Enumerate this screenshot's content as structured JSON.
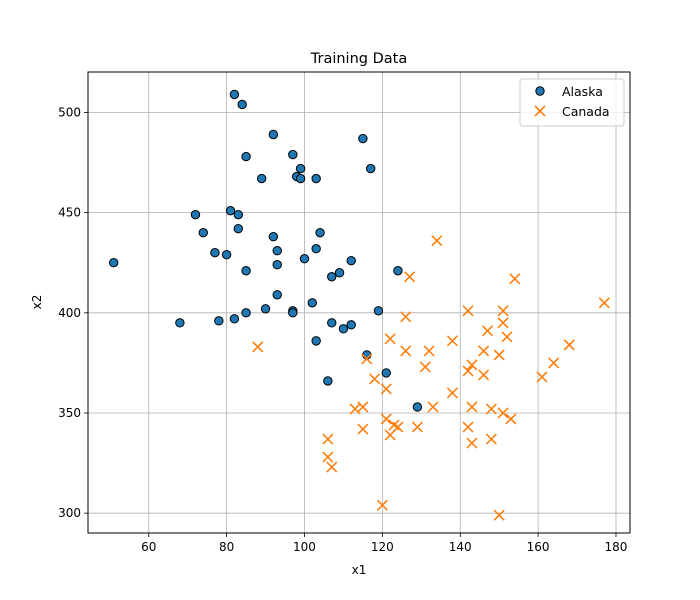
{
  "chart_data": {
    "type": "scatter",
    "title": "Training Data",
    "xlabel": "x1",
    "ylabel": "x2",
    "xlim": [
      44.4,
      183.6
    ],
    "ylim": [
      290.1,
      520.2
    ],
    "xticks": [
      60,
      80,
      100,
      120,
      140,
      160,
      180
    ],
    "yticks": [
      300,
      350,
      400,
      450,
      500
    ],
    "grid": true,
    "legend_position": "top-right",
    "colors": {
      "Alaska": "#1f77b4",
      "Canada": "#ff7f0e",
      "edge": "#000000",
      "grid": "#b0b0b0"
    },
    "series": [
      {
        "name": "Alaska",
        "marker": "circle",
        "points": [
          [
            82,
            509
          ],
          [
            84,
            504
          ],
          [
            92,
            489
          ],
          [
            115,
            487
          ],
          [
            85,
            478
          ],
          [
            97,
            479
          ],
          [
            99,
            472
          ],
          [
            117,
            472
          ],
          [
            89,
            467
          ],
          [
            98,
            468
          ],
          [
            99,
            467
          ],
          [
            103,
            467
          ],
          [
            72,
            449
          ],
          [
            81,
            451
          ],
          [
            83,
            449
          ],
          [
            74,
            440
          ],
          [
            83,
            442
          ],
          [
            92,
            438
          ],
          [
            104,
            440
          ],
          [
            77,
            430
          ],
          [
            80,
            429
          ],
          [
            93,
            431
          ],
          [
            103,
            432
          ],
          [
            100,
            427
          ],
          [
            112,
            426
          ],
          [
            93,
            424
          ],
          [
            85,
            421
          ],
          [
            107,
            418
          ],
          [
            109,
            420
          ],
          [
            124,
            421
          ],
          [
            51,
            425
          ],
          [
            93,
            409
          ],
          [
            102,
            405
          ],
          [
            90,
            402
          ],
          [
            97,
            401
          ],
          [
            97,
            400
          ],
          [
            85,
            400
          ],
          [
            119,
            401
          ],
          [
            68,
            395
          ],
          [
            78,
            396
          ],
          [
            82,
            397
          ],
          [
            107,
            395
          ],
          [
            110,
            392
          ],
          [
            112,
            394
          ],
          [
            103,
            386
          ],
          [
            116,
            379
          ],
          [
            121,
            370
          ],
          [
            106,
            366
          ],
          [
            129,
            353
          ]
        ]
      },
      {
        "name": "Canada",
        "marker": "x",
        "points": [
          [
            134,
            436
          ],
          [
            127,
            418
          ],
          [
            154,
            417
          ],
          [
            177,
            405
          ],
          [
            142,
            401
          ],
          [
            151,
            401
          ],
          [
            126,
            398
          ],
          [
            151,
            395
          ],
          [
            147,
            391
          ],
          [
            122,
            387
          ],
          [
            152,
            388
          ],
          [
            88,
            383
          ],
          [
            138,
            386
          ],
          [
            126,
            381
          ],
          [
            132,
            381
          ],
          [
            146,
            381
          ],
          [
            150,
            379
          ],
          [
            168,
            384
          ],
          [
            116,
            377
          ],
          [
            164,
            375
          ],
          [
            131,
            373
          ],
          [
            142,
            371
          ],
          [
            143,
            374
          ],
          [
            146,
            369
          ],
          [
            118,
            367
          ],
          [
            161,
            368
          ],
          [
            121,
            362
          ],
          [
            138,
            360
          ],
          [
            113,
            352
          ],
          [
            115,
            353
          ],
          [
            133,
            353
          ],
          [
            143,
            353
          ],
          [
            148,
            352
          ],
          [
            151,
            350
          ],
          [
            153,
            347
          ],
          [
            121,
            347
          ],
          [
            123,
            344
          ],
          [
            124,
            343
          ],
          [
            129,
            343
          ],
          [
            115,
            342
          ],
          [
            142,
            343
          ],
          [
            122,
            339
          ],
          [
            106,
            337
          ],
          [
            143,
            335
          ],
          [
            148,
            337
          ],
          [
            106,
            328
          ],
          [
            107,
            323
          ],
          [
            120,
            304
          ],
          [
            150,
            299
          ]
        ]
      }
    ]
  }
}
